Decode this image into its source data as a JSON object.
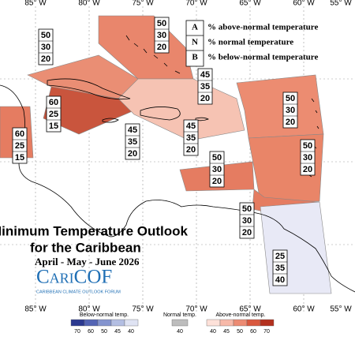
{
  "map": {
    "lon_labels": [
      "85° W",
      "80° W",
      "75° W",
      "70° W",
      "65° W",
      "60° W",
      "55° W"
    ],
    "legend": [
      {
        "code": "A",
        "text": "% above-normal temperature"
      },
      {
        "code": "N",
        "text": "% normal temperature"
      },
      {
        "code": "B",
        "text": "% below-normal temperature"
      }
    ],
    "title": "Minimum Temperature Outlook",
    "subtitle": "for the Caribbean",
    "period": "April - May - June 2026",
    "logo": "CariCOF",
    "logo_caption": "CARIBBEAN CLIMATE OUTLOOK FORUM",
    "boxes": [
      {
        "values": [
          50,
          30,
          20
        ]
      },
      {
        "values": [
          50,
          30,
          20
        ]
      },
      {
        "values": [
          60,
          25,
          15
        ]
      },
      {
        "values": [
          60,
          25,
          15
        ]
      },
      {
        "values": [
          45,
          35,
          20
        ]
      },
      {
        "values": [
          45,
          35,
          20
        ]
      },
      {
        "values": [
          45,
          35,
          20
        ]
      },
      {
        "values": [
          50,
          30,
          20
        ]
      },
      {
        "values": [
          50,
          30,
          20
        ]
      },
      {
        "values": [
          50,
          30,
          20
        ]
      },
      {
        "values": [
          50,
          30,
          20
        ]
      },
      {
        "values": [
          25,
          35,
          40
        ]
      }
    ],
    "colorbar": {
      "below": {
        "label": "Below-normal temp.",
        "ticks": [
          70,
          60,
          50,
          45,
          40
        ]
      },
      "normal": {
        "label": "Normal temp.",
        "ticks": [
          40
        ]
      },
      "above": {
        "label": "Above-normal temp.",
        "ticks": [
          40,
          45,
          50,
          60,
          70
        ]
      }
    }
  }
}
